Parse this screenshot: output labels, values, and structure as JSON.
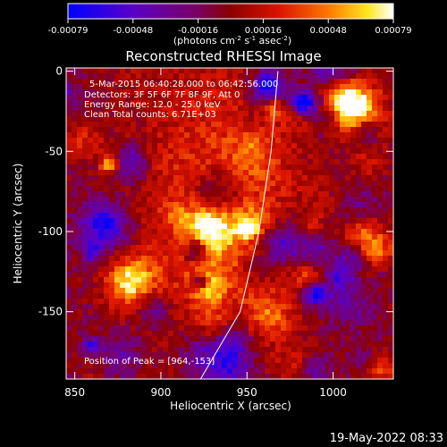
{
  "chart_data": {
    "type": "heatmap",
    "title": "Reconstructed RHESSI Image",
    "xlabel": "Heliocentric X (arcsec)",
    "ylabel": "Heliocentric Y (arcsec)",
    "xlim": [
      845,
      1035
    ],
    "ylim": [
      -192,
      2
    ],
    "x_ticks": [
      850,
      900,
      950,
      1000
    ],
    "y_ticks": [
      0,
      -50,
      -100,
      -150
    ],
    "colorbar": {
      "range": [
        -0.00079,
        0.00079
      ],
      "ticks": [
        "-0.00079",
        "-0.00048",
        "-0.00016",
        "0.00016",
        "0.00048",
        "0.00079"
      ],
      "units_text": "(photons cm",
      "units_exp1": "-2",
      "units_mid": " s",
      "units_exp2": "-1",
      "units_mid2": " asec",
      "units_exp3": "-2",
      "units_end": ")"
    },
    "annotations": {
      "time_range": "5-Mar-2015 06:40:28.000 to 06:42:56.000",
      "detectors": "Detectors: 3F 5F 6F 7F 8F 9F, Att 0",
      "energy_range": "Energy Range: 12.0 - 25.0 keV",
      "clean_counts": "Clean     Total counts: 6.71E+03",
      "peak": "Position of Peak = [964,-153]"
    },
    "limb_curve": [
      [
        923,
        -192
      ],
      [
        946,
        -150
      ],
      [
        957,
        -100
      ],
      [
        964,
        -50
      ],
      [
        968,
        0
      ]
    ],
    "peak_position": [
      964,
      -153
    ],
    "grid": false
  },
  "footer": {
    "date_stamp": "19-May-2022 08:33"
  },
  "colors": {
    "background": "#000000",
    "foreground": "#ffffff"
  }
}
